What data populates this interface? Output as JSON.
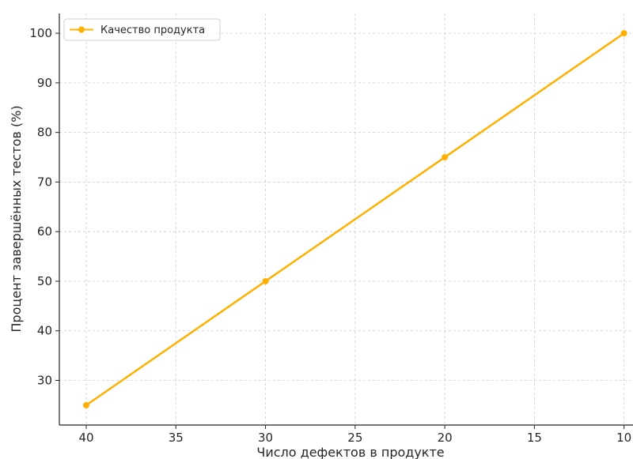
{
  "chart_data": {
    "type": "line",
    "xlabel": "Число дефектов в продукте",
    "ylabel": "Процент завершённых тестов (%)",
    "x_inverted": true,
    "xlim": [
      41.5,
      9.5
    ],
    "ylim": [
      21,
      104
    ],
    "x_ticks": [
      40,
      35,
      30,
      25,
      20,
      15,
      10
    ],
    "y_ticks": [
      30,
      40,
      50,
      60,
      70,
      80,
      90,
      100
    ],
    "grid": true,
    "legend_position": "top-left",
    "series": [
      {
        "name": "Качество продукта",
        "color": "#FFB000",
        "marker": "circle",
        "x": [
          40,
          30,
          20,
          10
        ],
        "y": [
          25,
          50,
          75,
          100
        ]
      }
    ]
  }
}
